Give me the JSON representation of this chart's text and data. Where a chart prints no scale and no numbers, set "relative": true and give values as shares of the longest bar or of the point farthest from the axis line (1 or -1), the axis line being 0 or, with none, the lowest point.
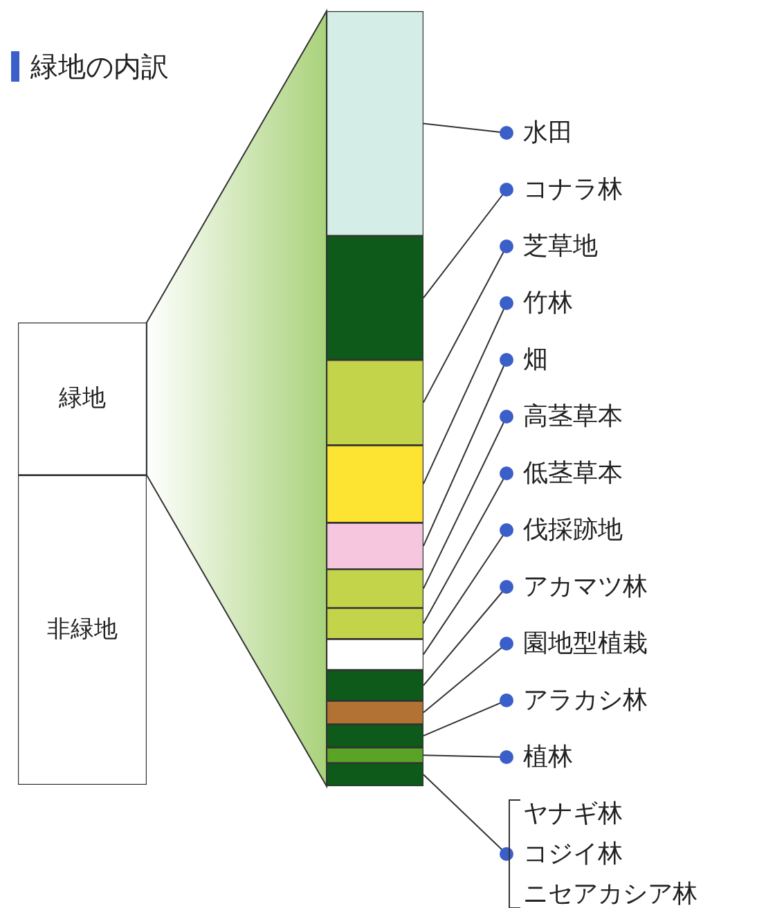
{
  "chart_data": [
    {
      "type": "bar",
      "stacked": true,
      "relative": true,
      "categories": [
        null
      ],
      "series": [
        {
          "name": "非緑地",
          "color": "#ffffff",
          "values": [
            0.67
          ]
        },
        {
          "name": "緑地",
          "color": "#ffffff",
          "values": [
            0.33
          ]
        }
      ]
    },
    {
      "type": "bar",
      "stacked": true,
      "relative": true,
      "legend": "right",
      "title": "緑地の内訳",
      "annotations": [
        "ヤナギ林",
        "コジイ林",
        "ニセアカシア林"
      ],
      "categories": [
        null
      ],
      "series": [
        {
          "color": "#0d5a1a",
          "values": [
            0.03
          ]
        },
        {
          "name": "植林",
          "color": "#5aa326",
          "values": [
            0.02
          ]
        },
        {
          "name": "アラカシ林",
          "color": "#0d5a1a",
          "values": [
            0.03
          ]
        },
        {
          "name": "園地型植栽",
          "color": "#b27233",
          "values": [
            0.03
          ]
        },
        {
          "name": "アカマツ林",
          "color": "#0d5a1a",
          "values": [
            0.04
          ]
        },
        {
          "name": "伐採跡地",
          "color": "#ffffff",
          "values": [
            0.04
          ]
        },
        {
          "name": "低茎草本",
          "color": "#c3d34a",
          "values": [
            0.04
          ]
        },
        {
          "name": "高茎草本",
          "color": "#c3d34a",
          "values": [
            0.05
          ]
        },
        {
          "name": "畑",
          "color": "#f5c6dd",
          "values": [
            0.06
          ]
        },
        {
          "name": "竹林",
          "color": "#fde332",
          "values": [
            0.1
          ]
        },
        {
          "name": "芝草地",
          "color": "#c3d34a",
          "values": [
            0.11
          ]
        },
        {
          "name": "コナラ林",
          "color": "#0d5a1a",
          "values": [
            0.16
          ]
        },
        {
          "name": "水田",
          "color": "#d4ede6",
          "values": [
            0.29
          ]
        }
      ]
    }
  ]
}
